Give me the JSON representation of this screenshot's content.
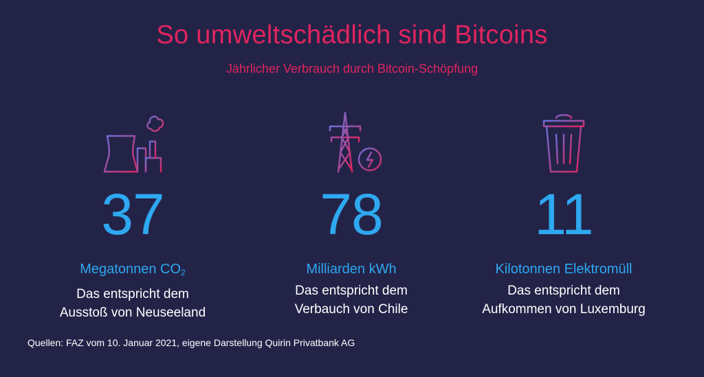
{
  "title": "So umweltschädlich sind Bitcoins",
  "subtitle": "Jährlicher Verbrauch durch Bitcoin-Schöpfung",
  "stats": [
    {
      "icon": "power-plant-icon",
      "number": "37",
      "unit_prefix": "Megatonnen CO",
      "unit_sub": "2",
      "desc_line1": "Das entspricht dem",
      "desc_line2": "Ausstoß von Neuseeland"
    },
    {
      "icon": "power-pylon-icon",
      "number": "78",
      "unit": "Milliarden kWh",
      "desc_line1": "Das entspricht dem",
      "desc_line2": "Verbauch von Chile"
    },
    {
      "icon": "trash-can-icon",
      "number": "11",
      "unit": "Kilotonnen Elektromüll",
      "desc_line1": "Das entspricht dem",
      "desc_line2": "Aufkommen von Luxemburg"
    }
  ],
  "source": "Quellen: FAZ vom 10. Januar 2021, eigene Darstellung Quirin Privatbank AG",
  "colors": {
    "background": "#232348",
    "title": "#e0245e",
    "accent": "#2ea8f0",
    "text": "#ffffff",
    "icon_gradient_start": "#6a6fd8",
    "icon_gradient_end": "#e0245e"
  }
}
